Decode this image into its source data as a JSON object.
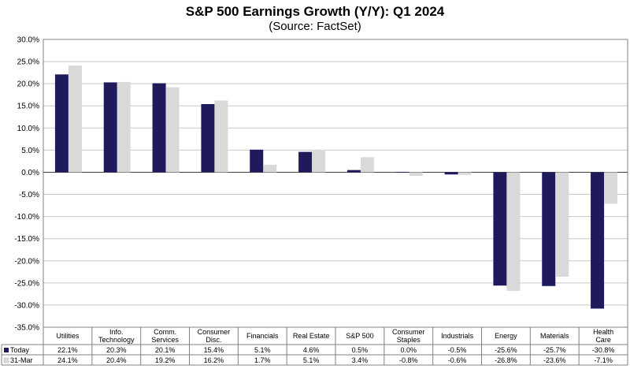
{
  "title": "S&P 500 Earnings Growth (Y/Y): Q1 2024",
  "subtitle": "(Source: FactSet)",
  "colors": {
    "today": "#1f1a5c",
    "mar31": "#d9d9d9",
    "grid": "#c8c8c8",
    "border": "#808080"
  },
  "chart_data": {
    "type": "bar",
    "title": "S&P 500 Earnings Growth (Y/Y): Q1 2024",
    "subtitle": "(Source: FactSet)",
    "categories": [
      [
        "Utilities"
      ],
      [
        "Info.",
        "Technology"
      ],
      [
        "Comm.",
        "Services"
      ],
      [
        "Consumer",
        "Disc."
      ],
      [
        "Financials"
      ],
      [
        "Real Estate"
      ],
      [
        "S&P 500"
      ],
      [
        "Consumer",
        "Staples"
      ],
      [
        "Industrials"
      ],
      [
        "Energy"
      ],
      [
        "Materials"
      ],
      [
        "Health",
        "Care"
      ]
    ],
    "series": [
      {
        "name": "Today",
        "values": [
          22.1,
          20.3,
          20.1,
          15.4,
          5.1,
          4.6,
          0.5,
          0.0,
          -0.5,
          -25.6,
          -25.7,
          -30.8
        ],
        "labels": [
          "22.1%",
          "20.3%",
          "20.1%",
          "15.4%",
          "5.1%",
          "4.6%",
          "0.5%",
          "0.0%",
          "-0.5%",
          "-25.6%",
          "-25.7%",
          "-30.8%"
        ]
      },
      {
        "name": "31-Mar",
        "values": [
          24.1,
          20.4,
          19.2,
          16.2,
          1.7,
          5.1,
          3.4,
          -0.8,
          -0.6,
          -26.8,
          -23.6,
          -7.1
        ],
        "labels": [
          "24.1%",
          "20.4%",
          "19.2%",
          "16.2%",
          "1.7%",
          "5.1%",
          "3.4%",
          "-0.8%",
          "-0.6%",
          "-26.8%",
          "-23.6%",
          "-7.1%"
        ]
      }
    ],
    "ylim": [
      -35,
      30
    ],
    "yticks": [
      30,
      25,
      20,
      15,
      10,
      5,
      0,
      -5,
      -10,
      -15,
      -20,
      -25,
      -30,
      -35
    ],
    "ytick_labels": [
      "30.0%",
      "25.0%",
      "20.0%",
      "15.0%",
      "10.0%",
      "5.0%",
      "0.0%",
      "-5.0%",
      "-10.0%",
      "-15.0%",
      "-20.0%",
      "-25.0%",
      "-30.0%",
      "-35.0%"
    ],
    "grid": true,
    "legend": "data-table"
  }
}
